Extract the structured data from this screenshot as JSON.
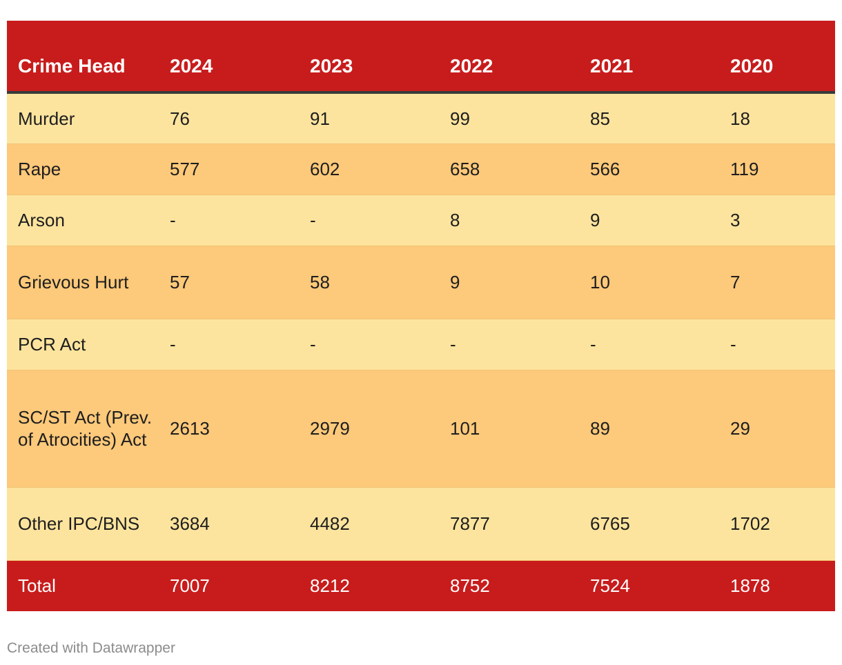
{
  "chart_data": {
    "type": "table",
    "columns": [
      "Crime Head",
      "2024",
      "2023",
      "2022",
      "2021",
      "2020"
    ],
    "rows": [
      {
        "label": "Murder",
        "values": [
          "76",
          "91",
          "99",
          "85",
          "18"
        ]
      },
      {
        "label": "Rape",
        "values": [
          "577",
          "602",
          "658",
          "566",
          "119"
        ]
      },
      {
        "label": "Arson",
        "values": [
          "-",
          "-",
          "8",
          "9",
          "3"
        ]
      },
      {
        "label": "Grievous Hurt",
        "values": [
          "57",
          "58",
          "9",
          "10",
          "7"
        ]
      },
      {
        "label": "PCR Act",
        "values": [
          "-",
          "-",
          "-",
          "-",
          "-"
        ]
      },
      {
        "label": "SC/ST Act (Prev. of Atrocities) Act",
        "values": [
          "2613",
          "2979",
          "101",
          "89",
          "29"
        ]
      },
      {
        "label": "Other IPC/BNS",
        "values": [
          "3684",
          "4482",
          "7877",
          "6765",
          "1702"
        ]
      }
    ],
    "total": {
      "label": "Total",
      "values": [
        "7007",
        "8212",
        "8752",
        "7524",
        "1878"
      ]
    }
  },
  "footer": {
    "credit": "Created with Datawrapper"
  },
  "colors": {
    "header_bg": "#c81c1c",
    "row_light": "#fde49e",
    "row_dark": "#fdc97a",
    "header_text": "#ffffff",
    "footer_text": "#8c8c8c"
  }
}
